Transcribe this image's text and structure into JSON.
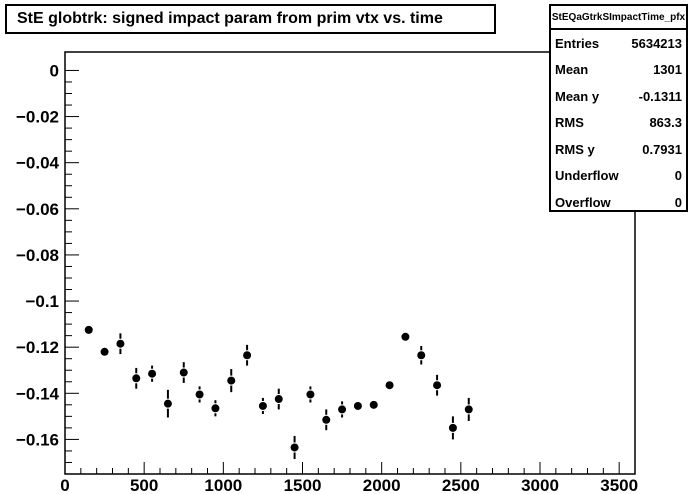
{
  "chart_data": {
    "type": "scatter",
    "title": "StE globtrk: signed impact param from prim vtx vs. time",
    "xlabel": "",
    "ylabel": "",
    "xlim": [
      0,
      3600
    ],
    "ylim": [
      -0.175,
      0.008
    ],
    "xticks": [
      0,
      500,
      1000,
      1500,
      2000,
      2500,
      3000,
      3500
    ],
    "yticks": [
      0,
      -0.02,
      -0.04,
      -0.06,
      -0.08,
      -0.1,
      -0.12,
      -0.14,
      -0.16
    ],
    "ytick_labels": [
      "0",
      "−0.02",
      "−0.04",
      "−0.06",
      "−0.08",
      "−0.1",
      "−0.12",
      "−0.14",
      "−0.16"
    ],
    "points": [
      {
        "x": 150,
        "y": -0.1125,
        "err": 0.0
      },
      {
        "x": 250,
        "y": -0.122,
        "err": 0.0
      },
      {
        "x": 350,
        "y": -0.1185,
        "err": 0.0045
      },
      {
        "x": 450,
        "y": -0.1335,
        "err": 0.0045
      },
      {
        "x": 550,
        "y": -0.1315,
        "err": 0.0035
      },
      {
        "x": 650,
        "y": -0.1445,
        "err": 0.006
      },
      {
        "x": 750,
        "y": -0.131,
        "err": 0.0045
      },
      {
        "x": 850,
        "y": -0.1405,
        "err": 0.0035
      },
      {
        "x": 950,
        "y": -0.1465,
        "err": 0.0035
      },
      {
        "x": 1050,
        "y": -0.1345,
        "err": 0.005
      },
      {
        "x": 1150,
        "y": -0.1235,
        "err": 0.0045
      },
      {
        "x": 1250,
        "y": -0.1455,
        "err": 0.0035
      },
      {
        "x": 1350,
        "y": -0.1425,
        "err": 0.0045
      },
      {
        "x": 1450,
        "y": -0.1635,
        "err": 0.005
      },
      {
        "x": 1550,
        "y": -0.1405,
        "err": 0.0035
      },
      {
        "x": 1650,
        "y": -0.1515,
        "err": 0.0045
      },
      {
        "x": 1750,
        "y": -0.147,
        "err": 0.0035
      },
      {
        "x": 1850,
        "y": -0.1455,
        "err": 0.0
      },
      {
        "x": 1950,
        "y": -0.145,
        "err": 0.0
      },
      {
        "x": 2050,
        "y": -0.1365,
        "err": 0.0
      },
      {
        "x": 2150,
        "y": -0.1155,
        "err": 0.0
      },
      {
        "x": 2250,
        "y": -0.1235,
        "err": 0.004
      },
      {
        "x": 2350,
        "y": -0.1365,
        "err": 0.0045
      },
      {
        "x": 2450,
        "y": -0.155,
        "err": 0.005
      },
      {
        "x": 2550,
        "y": -0.147,
        "err": 0.005
      }
    ]
  },
  "stats": {
    "name": "StEQaGtrkSImpactTime_pfx",
    "rows": [
      {
        "label": "Entries",
        "value": "5634213"
      },
      {
        "label": "Mean",
        "value": "1301"
      },
      {
        "label": "Mean y",
        "value": "-0.1311"
      },
      {
        "label": "RMS",
        "value": "863.3"
      },
      {
        "label": "RMS y",
        "value": "0.7931"
      },
      {
        "label": "Underflow",
        "value": "0"
      },
      {
        "label": "Overflow",
        "value": "0"
      }
    ]
  }
}
